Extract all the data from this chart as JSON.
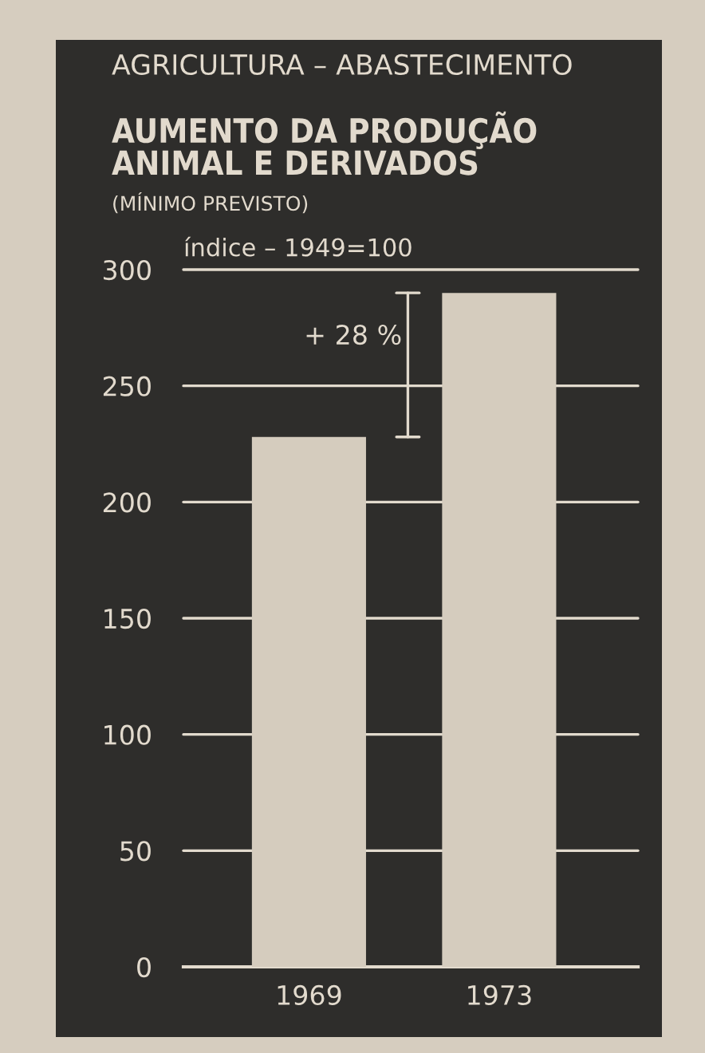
{
  "chart_data": {
    "type": "bar",
    "title": "AUMENTO DA PRODUÇÃO\nANIMAL E DERIVADOS",
    "subtitle": "(MÍNIMO PREVISTO)",
    "ylabel": "índice – 1949=100",
    "categories": [
      "1969",
      "1973"
    ],
    "values": [
      228,
      290
    ],
    "color": "#d5ccbe",
    "ylim": [
      0,
      300
    ],
    "yticks": [
      0,
      50,
      100,
      150,
      200,
      250,
      300
    ],
    "grid": "y",
    "annotations": [
      "AGRICULTURA – ABASTECIMENTO",
      "+ 28 %"
    ]
  }
}
